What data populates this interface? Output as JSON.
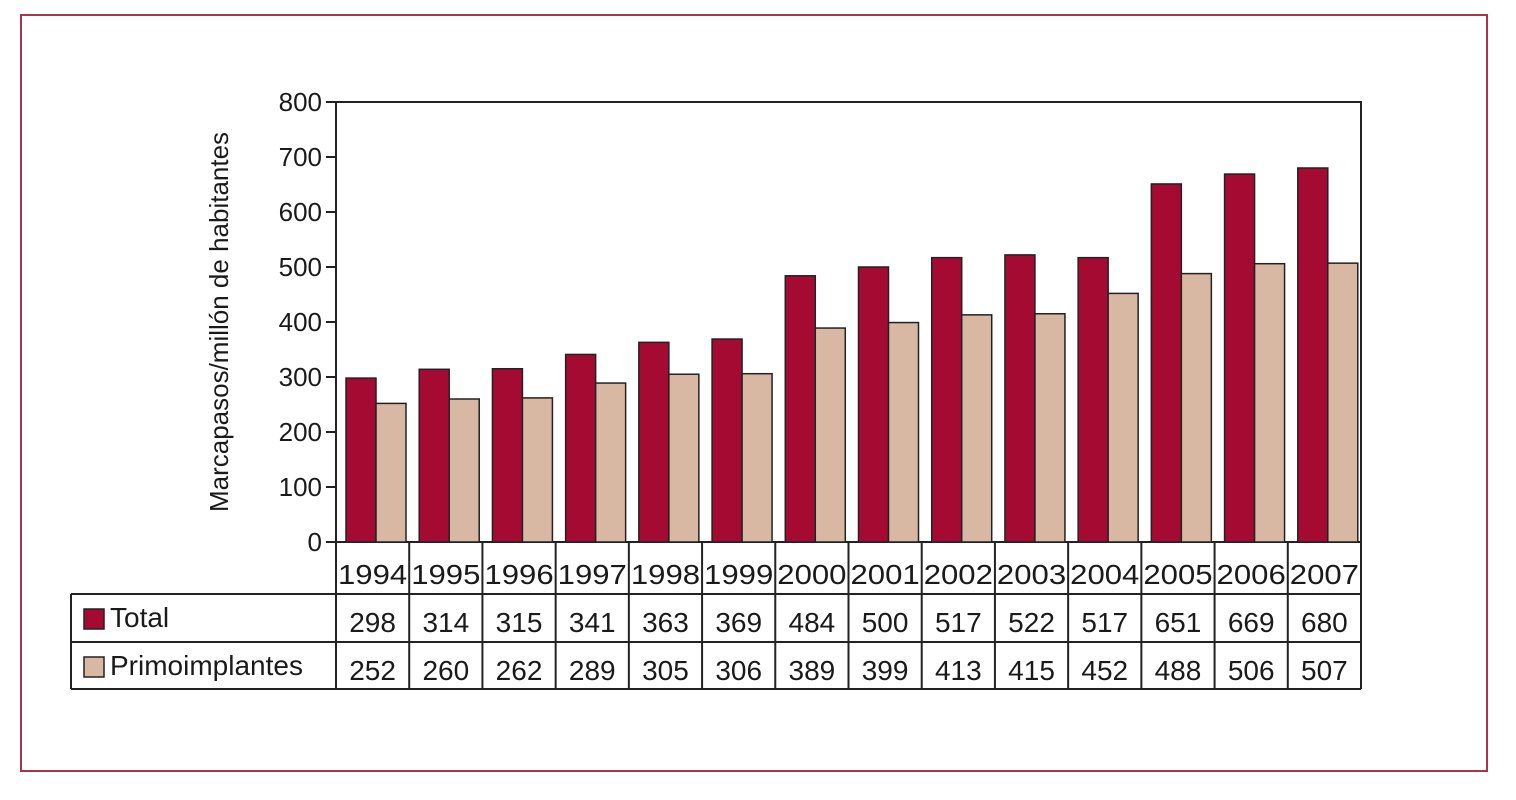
{
  "chart_data": {
    "type": "bar",
    "title": "",
    "xlabel": "",
    "ylabel": "Marcapasos/millón de habitantes",
    "ylim": [
      0,
      800
    ],
    "yticks": [
      0,
      100,
      200,
      300,
      400,
      500,
      600,
      700,
      800
    ],
    "grid": false,
    "legend": "data-table-left",
    "categories": [
      "1994",
      "1995",
      "1996",
      "1997",
      "1998",
      "1999",
      "2000",
      "2001",
      "2002",
      "2003",
      "2004",
      "2005",
      "2006",
      "2007"
    ],
    "series": [
      {
        "name": "Total",
        "color": "#a50a33",
        "values": [
          298,
          314,
          315,
          341,
          363,
          369,
          484,
          500,
          517,
          522,
          517,
          651,
          669,
          680
        ]
      },
      {
        "name": "Primoimplantes",
        "color": "#d8b7a3",
        "values": [
          252,
          260,
          262,
          289,
          305,
          306,
          389,
          399,
          413,
          415,
          452,
          488,
          506,
          507
        ]
      }
    ]
  }
}
